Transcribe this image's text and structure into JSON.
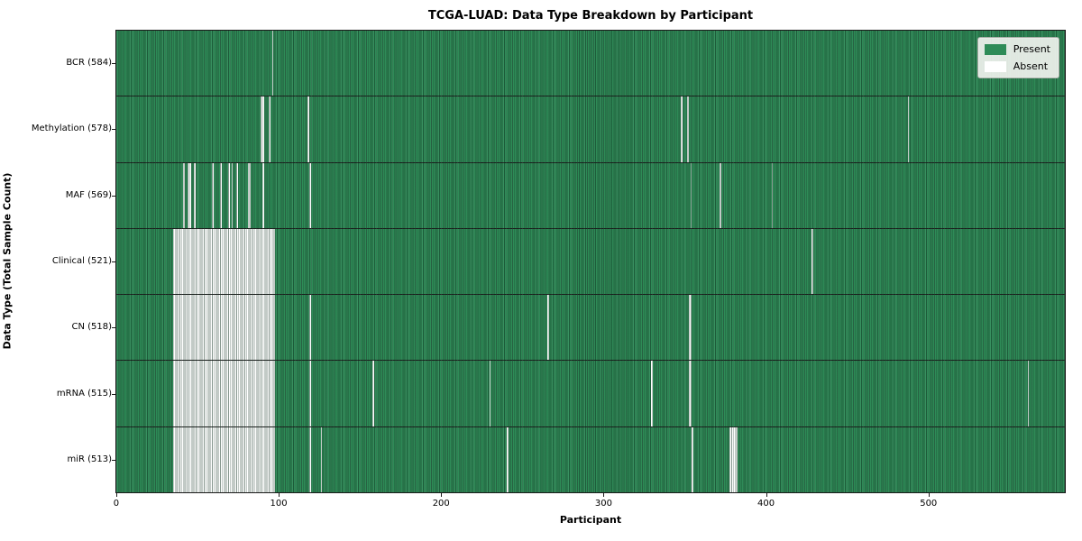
{
  "title": "TCGA-LUAD: Data Type Breakdown by Participant",
  "xlabel": "Participant",
  "ylabel": "Data Type (Total Sample Count)",
  "legend": {
    "present_label": "Present",
    "absent_label": "Absent"
  },
  "colors": {
    "present": "#2e8b57",
    "absent": "#ffffff",
    "grid_line": "#1b1b1b",
    "legend_bg": "#f0f2ee",
    "legend_border": "#aab0a8"
  },
  "chart_data": {
    "type": "heatmap",
    "title": "TCGA-LUAD: Data Type Breakdown by Participant",
    "xlabel": "Participant",
    "ylabel": "Data Type (Total Sample Count)",
    "legend_entries": [
      "Present",
      "Absent"
    ],
    "legend_position": "upper right",
    "n_participants": 585,
    "xlim": [
      -0.5,
      584.5
    ],
    "x_ticks": [
      0,
      100,
      200,
      300,
      400,
      500
    ],
    "cell_values": {
      "present": 1,
      "absent": 0
    },
    "rows": [
      {
        "label": "BCR (584)",
        "data_type": "BCR",
        "present_count": 584,
        "absent_ranges": [
          [
            96,
            96
          ]
        ]
      },
      {
        "label": "Methylation (578)",
        "data_type": "Methylation",
        "present_count": 578,
        "absent_ranges": [
          [
            89,
            90
          ],
          [
            94,
            94
          ],
          [
            118,
            118
          ],
          [
            348,
            348
          ],
          [
            352,
            352
          ],
          [
            488,
            488
          ]
        ]
      },
      {
        "label": "MAF (569)",
        "data_type": "MAF",
        "present_count": 569,
        "absent_ranges": [
          [
            41,
            41
          ],
          [
            44,
            45
          ],
          [
            48,
            48
          ],
          [
            59,
            59
          ],
          [
            64,
            64
          ],
          [
            69,
            69
          ],
          [
            71,
            71
          ],
          [
            74,
            74
          ],
          [
            81,
            82
          ],
          [
            90,
            90
          ],
          [
            119,
            119
          ],
          [
            354,
            354
          ],
          [
            372,
            372
          ],
          [
            404,
            404
          ]
        ]
      },
      {
        "label": "Clinical (521)",
        "data_type": "Clinical",
        "present_count": 521,
        "absent_ranges": [
          [
            35,
            97
          ],
          [
            429,
            429
          ]
        ]
      },
      {
        "label": "CN (518)",
        "data_type": "CN",
        "present_count": 518,
        "absent_ranges": [
          [
            35,
            97
          ],
          [
            119,
            119
          ],
          [
            266,
            266
          ],
          [
            353,
            354
          ]
        ]
      },
      {
        "label": "mRNA (515)",
        "data_type": "mRNA",
        "present_count": 515,
        "absent_ranges": [
          [
            35,
            97
          ],
          [
            119,
            119
          ],
          [
            158,
            158
          ],
          [
            230,
            230
          ],
          [
            330,
            330
          ],
          [
            353,
            354
          ],
          [
            562,
            562
          ]
        ]
      },
      {
        "label": "miR (513)",
        "data_type": "miR",
        "present_count": 513,
        "absent_ranges": [
          [
            35,
            97
          ],
          [
            119,
            119
          ],
          [
            126,
            126
          ],
          [
            241,
            241
          ],
          [
            355,
            355
          ],
          [
            378,
            382
          ]
        ]
      }
    ]
  }
}
